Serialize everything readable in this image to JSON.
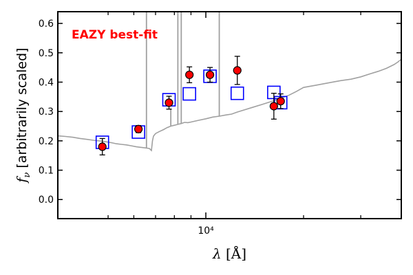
{
  "chart_data": {
    "type": "scatter",
    "title": "",
    "annotation": {
      "text": "EAZY best-fit",
      "color": "#ff0000"
    },
    "xlabel": "λ [Å]",
    "ylabel": "f_ν [arbitrarily scaled]",
    "ylabel_symbol": "f",
    "ylabel_subscript": "ν",
    "ylabel_rest": " [arbitrarily scaled]",
    "xlabel_symbol": "λ",
    "xlabel_unit": " [Å]",
    "xscale": "log",
    "xlim": [
      3500,
      40000
    ],
    "ylim": [
      -0.065,
      0.64
    ],
    "yticks": [
      0.0,
      0.1,
      0.2,
      0.3,
      0.4,
      0.5,
      0.6
    ],
    "ytick_labels": [
      "0.0",
      "0.1",
      "0.2",
      "0.3",
      "0.4",
      "0.5",
      "0.6"
    ],
    "xticks_major": [
      10000
    ],
    "xtick_major_labels": [
      "10⁴"
    ],
    "xticks_minor": [
      5000,
      6000,
      7000,
      8000,
      9000,
      20000,
      30000
    ],
    "observed": {
      "name": "observed photometry",
      "color": "#ff0000",
      "x": [
        4800,
        6200,
        7700,
        8900,
        10300,
        12500,
        16200,
        17000
      ],
      "y": [
        0.18,
        0.24,
        0.33,
        0.425,
        0.425,
        0.44,
        0.318,
        0.335
      ],
      "yerr": [
        0.028,
        0.012,
        0.022,
        0.027,
        0.025,
        0.048,
        0.044,
        0.025
      ]
    },
    "model_photometry": {
      "name": "model photometry",
      "color": "#0000ff",
      "x": [
        4800,
        6200,
        7700,
        8900,
        10300,
        12500,
        16200,
        17000
      ],
      "y": [
        0.195,
        0.23,
        0.34,
        0.36,
        0.42,
        0.362,
        0.365,
        0.33
      ]
    },
    "template": {
      "name": "EAZY best-fit template",
      "color": "#a0a0a0",
      "x": [
        3500,
        3700,
        3900,
        4100,
        4300,
        4500,
        4700,
        4900,
        5100,
        5300,
        5500,
        5700,
        5900,
        6100,
        6300,
        6500,
        6700,
        6800,
        6850,
        6900,
        7000,
        7200,
        7400,
        7600,
        7800,
        8000,
        8200,
        8400,
        8600,
        8800,
        9000,
        9500,
        10000,
        10500,
        11000,
        11500,
        12000,
        12500,
        13000,
        14000,
        15000,
        16000,
        17000,
        18000,
        19000,
        20000,
        22000,
        24000,
        26000,
        28000,
        30000,
        32000,
        34000,
        36000,
        38000,
        39000,
        40000
      ],
      "y": [
        0.217,
        0.215,
        0.212,
        0.208,
        0.205,
        0.202,
        0.2,
        0.197,
        0.194,
        0.19,
        0.188,
        0.186,
        0.183,
        0.18,
        0.178,
        0.176,
        0.174,
        0.167,
        0.2,
        0.216,
        0.225,
        0.232,
        0.238,
        0.245,
        0.25,
        0.253,
        0.256,
        0.259,
        0.263,
        0.262,
        0.264,
        0.27,
        0.275,
        0.281,
        0.284,
        0.288,
        0.291,
        0.298,
        0.304,
        0.315,
        0.325,
        0.335,
        0.345,
        0.355,
        0.368,
        0.382,
        0.39,
        0.398,
        0.405,
        0.41,
        0.418,
        0.428,
        0.437,
        0.447,
        0.46,
        0.468,
        0.478
      ]
    },
    "emission_lines": [
      {
        "x": 6563,
        "peak": 0.64
      },
      {
        "x": 8200,
        "peak": 0.64
      },
      {
        "x": 8400,
        "peak": 0.64
      },
      {
        "x": 11000,
        "peak": 0.64
      },
      {
        "x": 7800,
        "peak": 0.31
      }
    ],
    "grid": false,
    "legend": "none"
  }
}
